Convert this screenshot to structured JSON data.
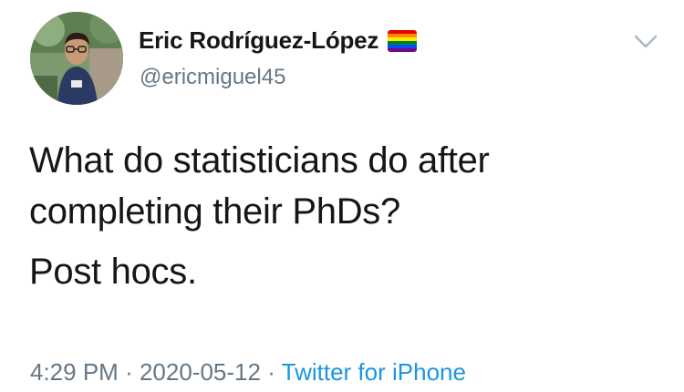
{
  "author": {
    "display_name": "Eric Rodríguez-López",
    "handle": "@ericmiguel45",
    "flag_icon": "rainbow-flag-icon"
  },
  "tweet": {
    "line1": "What do statisticians do after completing their PhDs?",
    "line2": "Post hocs."
  },
  "meta": {
    "time": "4:29 PM",
    "separator1": "·",
    "date": "2020-05-12",
    "separator2": "·",
    "source": "Twitter for iPhone"
  },
  "colors": {
    "text": "#14171a",
    "secondary": "#657786",
    "link": "#1b95e0"
  }
}
